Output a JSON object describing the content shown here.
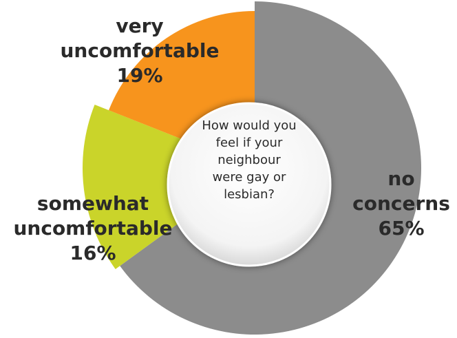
{
  "chart_data": {
    "type": "donut",
    "title": "How would you feel if your neighbour were gay or lesbian?",
    "categories": [
      "no concerns",
      "somewhat uncomfortable",
      "very uncomfortable"
    ],
    "values": [
      65,
      16,
      19
    ],
    "value_labels": [
      "65%",
      "16%",
      "19%"
    ],
    "colors": [
      "#8c8c8c",
      "#cad42a",
      "#f7941d"
    ]
  }
}
